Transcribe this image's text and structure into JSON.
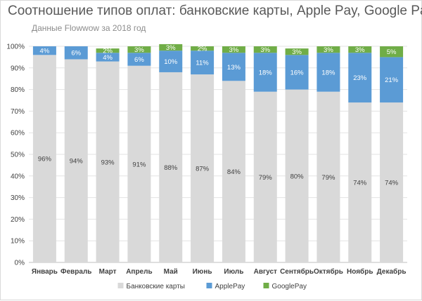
{
  "title": "Соотношение типов оплат: банковские карты, Apple Pay, Google Pay",
  "subtitle": "Данные Flowwow за 2018 год",
  "colors": {
    "bank": "#d9d9d9",
    "apple": "#5b9bd5",
    "google": "#70ad47",
    "grid": "#e3e3e3"
  },
  "chart_data": {
    "type": "bar",
    "stacked": true,
    "percent": true,
    "title": "Соотношение типов оплат: банковские карты, Apple Pay, Google Pay",
    "subtitle": "Данные Flowwow за 2018 год",
    "categories": [
      "Январь",
      "Февраль",
      "Март",
      "Апрель",
      "Май",
      "Июнь",
      "Июль",
      "Август",
      "Сентябрь",
      "Октябрь",
      "Ноябрь",
      "Декабрь"
    ],
    "y_ticks": [
      "0%",
      "10%",
      "20%",
      "30%",
      "40%",
      "50%",
      "60%",
      "70%",
      "80%",
      "90%",
      "100%"
    ],
    "ylim": [
      0,
      100
    ],
    "grid": true,
    "legend_position": "bottom",
    "series": [
      {
        "name": "Банковские карты",
        "color": "#d9d9d9",
        "values": [
          96,
          94,
          93,
          91,
          88,
          87,
          84,
          79,
          80,
          79,
          74,
          74
        ],
        "labels": [
          "96%",
          "94%",
          "93%",
          "91%",
          "88%",
          "87%",
          "84%",
          "79%",
          "80%",
          "79%",
          "74%",
          "74%"
        ]
      },
      {
        "name": "ApplePay",
        "color": "#5b9bd5",
        "values": [
          4,
          6,
          4,
          6,
          10,
          11,
          13,
          18,
          16,
          18,
          23,
          21
        ],
        "labels": [
          "4%",
          "6%",
          "4%",
          "6%",
          "10%",
          "11%",
          "13%",
          "18%",
          "16%",
          "18%",
          "23%",
          "21%"
        ]
      },
      {
        "name": "GooglePay",
        "color": "#70ad47",
        "values": [
          0,
          0,
          2,
          3,
          3,
          2,
          3,
          3,
          3,
          3,
          3,
          5
        ],
        "labels": [
          "",
          "",
          "2%",
          "3%",
          "3%",
          "2%",
          "3%",
          "3%",
          "3%",
          "3%",
          "3%",
          "5%"
        ]
      }
    ]
  }
}
